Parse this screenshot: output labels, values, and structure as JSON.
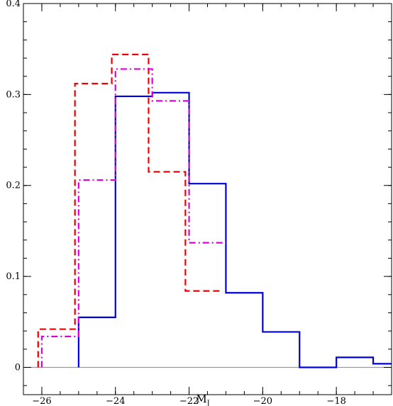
{
  "chart_data": {
    "type": "histogram",
    "xlabel": "M",
    "xlabel_subscript": "J",
    "ylabel": "",
    "xlim": [
      -26.5,
      -16.5
    ],
    "ylim": [
      -0.03,
      0.4
    ],
    "xticks": [
      -26,
      -24,
      -22,
      -20,
      -18
    ],
    "xtick_labels": [
      "−26",
      "−24",
      "−22",
      "−20",
      "−18"
    ],
    "yticks": [
      0,
      0.1,
      0.2,
      0.3,
      0.4
    ],
    "ytick_labels": [
      "0",
      "0.1",
      "0.2",
      "0.3",
      "0.4"
    ],
    "zero_line": true,
    "grid": false,
    "series": [
      {
        "style": "solid",
        "color": "#0000dd",
        "edges": [
          -25,
          -24,
          -23,
          -22,
          -21,
          -20,
          -19,
          -18,
          -17,
          -16.5
        ],
        "values": [
          0.055,
          0.298,
          0.302,
          0.202,
          0.082,
          0.039,
          0,
          0.011,
          0.004
        ]
      },
      {
        "style": "dashed",
        "color": "#ee0000",
        "edges": [
          -26.1,
          -25.1,
          -24.1,
          -23.1,
          -22.1,
          -21.1
        ],
        "values": [
          0.042,
          0.312,
          0.344,
          0.215,
          0.084
        ]
      },
      {
        "style": "dashdot",
        "color": "#dd00dd",
        "edges": [
          -26,
          -25,
          -24,
          -23,
          -22,
          -21
        ],
        "values": [
          0.034,
          0.206,
          0.328,
          0.293,
          0.137
        ]
      }
    ]
  }
}
